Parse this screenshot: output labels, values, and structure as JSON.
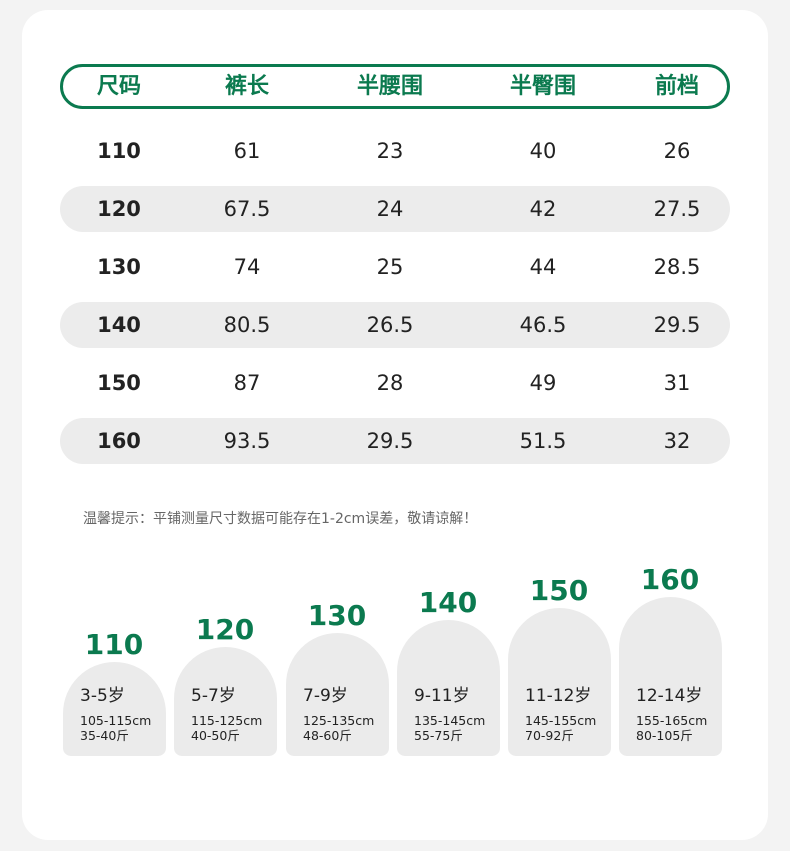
{
  "colors": {
    "accent": "#0b7a4f",
    "row_shade": "#ececec"
  },
  "table": {
    "headers": [
      "尺码",
      "裤长",
      "半腰围",
      "半臀围",
      "前档"
    ],
    "rows": [
      [
        "110",
        "61",
        "23",
        "40",
        "26"
      ],
      [
        "120",
        "67.5",
        "24",
        "42",
        "27.5"
      ],
      [
        "130",
        "74",
        "25",
        "44",
        "28.5"
      ],
      [
        "140",
        "80.5",
        "26.5",
        "46.5",
        "29.5"
      ],
      [
        "150",
        "87",
        "28",
        "49",
        "31"
      ],
      [
        "160",
        "93.5",
        "29.5",
        "51.5",
        "32"
      ]
    ]
  },
  "note": "温馨提示：平铺测量尺寸数据可能存在1-2cm误差，敬请谅解！",
  "size_guide": [
    {
      "size": "110",
      "age": "3-5岁",
      "height": "105-115cm",
      "weight": "35-40斤"
    },
    {
      "size": "120",
      "age": "5-7岁",
      "height": "115-125cm",
      "weight": "40-50斤"
    },
    {
      "size": "130",
      "age": "7-9岁",
      "height": "125-135cm",
      "weight": "48-60斤"
    },
    {
      "size": "140",
      "age": "9-11岁",
      "height": "135-145cm",
      "weight": "55-75斤"
    },
    {
      "size": "150",
      "age": "11-12岁",
      "height": "145-155cm",
      "weight": "70-92斤"
    },
    {
      "size": "160",
      "age": "12-14岁",
      "height": "155-165cm",
      "weight": "80-105斤"
    }
  ]
}
